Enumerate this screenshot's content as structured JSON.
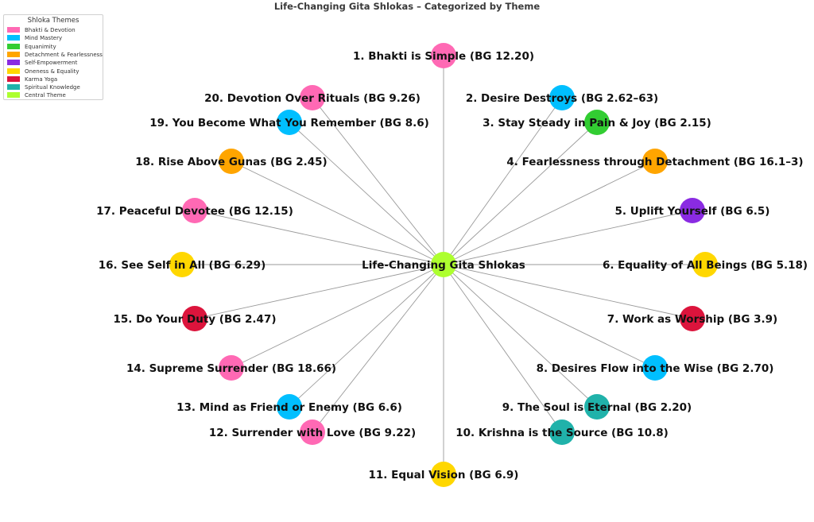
{
  "title": "Life-Changing Gita Shlokas – Categorized by Theme",
  "legend": {
    "title": "Shloka Themes",
    "items": [
      {
        "label": "Bhakti & Devotion",
        "color": "#ff69b4"
      },
      {
        "label": "Mind Mastery",
        "color": "#00bfff"
      },
      {
        "label": "Equanimity",
        "color": "#32cd32"
      },
      {
        "label": "Detachment & Fearlessness",
        "color": "#ffa500"
      },
      {
        "label": "Self-Empowerment",
        "color": "#8a2be2"
      },
      {
        "label": "Oneness & Equality",
        "color": "#ffd700"
      },
      {
        "label": "Karma Yoga",
        "color": "#dc143c"
      },
      {
        "label": "Spiritual Knowledge",
        "color": "#20b2aa"
      },
      {
        "label": "Central Theme",
        "color": "#adff2f"
      }
    ]
  },
  "center": {
    "label": "Life-Changing Gita Shlokas",
    "theme": "Central Theme"
  },
  "nodes": [
    {
      "label": "1. Bhakti is Simple (BG 12.20)",
      "theme": "Bhakti & Devotion"
    },
    {
      "label": "2. Desire Destroys (BG 2.62–63)",
      "theme": "Mind Mastery"
    },
    {
      "label": "3. Stay Steady in Pain & Joy (BG 2.15)",
      "theme": "Equanimity"
    },
    {
      "label": "4. Fearlessness through Detachment (BG 16.1–3)",
      "theme": "Detachment & Fearlessness"
    },
    {
      "label": "5. Uplift Yourself (BG 6.5)",
      "theme": "Self-Empowerment"
    },
    {
      "label": "6. Equality of All Beings (BG 5.18)",
      "theme": "Oneness & Equality"
    },
    {
      "label": "7. Work as Worship (BG 3.9)",
      "theme": "Karma Yoga"
    },
    {
      "label": "8. Desires Flow into the Wise (BG 2.70)",
      "theme": "Mind Mastery"
    },
    {
      "label": "9. The Soul is Eternal (BG 2.20)",
      "theme": "Spiritual Knowledge"
    },
    {
      "label": "10. Krishna is the Source (BG 10.8)",
      "theme": "Spiritual Knowledge"
    },
    {
      "label": "11. Equal Vision (BG 6.9)",
      "theme": "Oneness & Equality"
    },
    {
      "label": "12. Surrender with Love (BG 9.22)",
      "theme": "Bhakti & Devotion"
    },
    {
      "label": "13. Mind as Friend or Enemy (BG 6.6)",
      "theme": "Mind Mastery"
    },
    {
      "label": "14. Supreme Surrender (BG 18.66)",
      "theme": "Bhakti & Devotion"
    },
    {
      "label": "15. Do Your Duty (BG 2.47)",
      "theme": "Karma Yoga"
    },
    {
      "label": "16. See Self in All (BG 6.29)",
      "theme": "Oneness & Equality"
    },
    {
      "label": "17. Peaceful Devotee (BG 12.15)",
      "theme": "Bhakti & Devotion"
    },
    {
      "label": "18. Rise Above Gunas (BG 2.45)",
      "theme": "Detachment & Fearlessness"
    },
    {
      "label": "19. You Become What You Remember (BG 8.6)",
      "theme": "Mind Mastery"
    },
    {
      "label": "20. Devotion Over Rituals (BG 9.26)",
      "theme": "Bhakti & Devotion"
    }
  ]
}
